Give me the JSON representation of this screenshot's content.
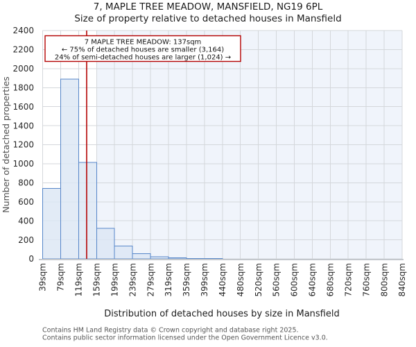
{
  "title": {
    "line1": "7, MAPLE TREE MEADOW, MANSFIELD, NG19 6PL",
    "line2": "Size of property relative to detached houses in Mansfield"
  },
  "annotation": {
    "line1": "7 MAPLE TREE MEADOW: 137sqm",
    "line2": "← 75% of detached houses are smaller (3,164)",
    "line3": "24% of semi-detached houses are larger (1,024) →"
  },
  "footer": {
    "line1": "Contains HM Land Registry data © Crown copyright and database right 2025.",
    "line2": "Contains public sector information licensed under the Open Government Licence v3.0."
  },
  "chart_data": {
    "type": "bar",
    "title": "7, MAPLE TREE MEADOW, MANSFIELD, NG19 6PL — Size of property relative to detached houses in Mansfield",
    "xlabel": "Distribution of detached houses by size in Mansfield",
    "ylabel": "Number of detached properties",
    "categories": [
      "39sqm",
      "79sqm",
      "119sqm",
      "159sqm",
      "199sqm",
      "239sqm",
      "279sqm",
      "319sqm",
      "359sqm",
      "399sqm",
      "440sqm",
      "480sqm",
      "520sqm",
      "560sqm",
      "600sqm",
      "640sqm",
      "680sqm",
      "720sqm",
      "760sqm",
      "800sqm",
      "840sqm"
    ],
    "values": [
      740,
      1890,
      1015,
      320,
      135,
      55,
      22,
      12,
      5,
      4,
      0,
      0,
      0,
      0,
      0,
      0,
      0,
      0,
      0,
      0
    ],
    "ylim": [
      0,
      2400
    ],
    "ytick_step": 200,
    "grid": true,
    "legend": false,
    "marker_value_sqm": 137,
    "marker_bin_start_sqm": 39,
    "marker_bin_width_sqm": 40,
    "shade_from_category_index": 3
  },
  "colors": {
    "bar_fill": "#dce6f4",
    "bar_edge": "#5585c8",
    "marker_red": "#b30000",
    "annotation_border": "#b30000",
    "shade_bg": "#f0f4fb",
    "grid": "#d4d7db",
    "spine": "#c4c8cd"
  }
}
